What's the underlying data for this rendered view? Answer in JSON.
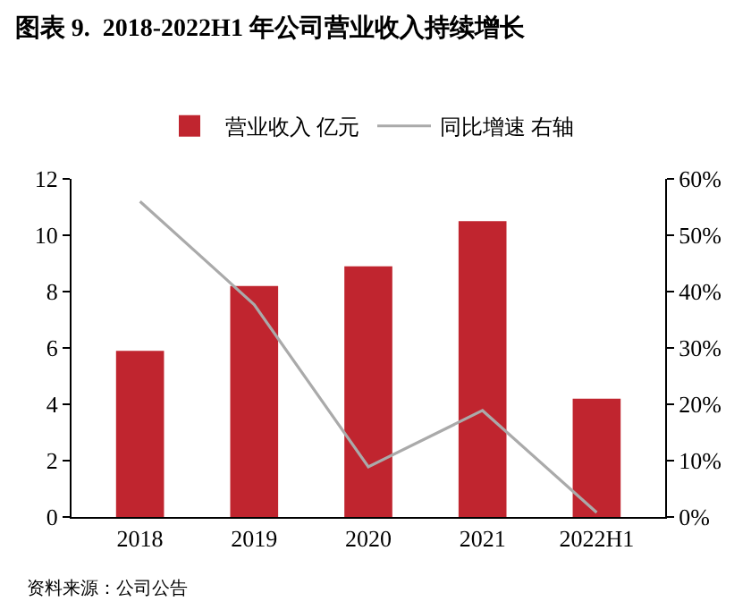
{
  "chart_data": {
    "type": "bar",
    "title": "图表 9.  2018-2022H1 年公司营业收入持续增长",
    "categories": [
      "2018",
      "2019",
      "2020",
      "2021",
      "2022H1"
    ],
    "series": [
      {
        "name": "营业收入 亿元",
        "color": "#c0252f",
        "values": [
          5.9,
          8.2,
          8.9,
          10.5,
          4.2
        ]
      },
      {
        "name": "同比增速 右轴",
        "type": "line",
        "axis": "y2",
        "color": "#aaaaaa",
        "marker": "none",
        "values": [
          56,
          37.7,
          8.9,
          18.9,
          0.8
        ]
      }
    ],
    "ylim": [
      0,
      12
    ],
    "yticks": [
      0,
      2,
      4,
      6,
      8,
      10,
      12
    ],
    "y2lim": [
      0,
      60
    ],
    "y2ticks": [
      {
        "value": 0,
        "label": "0%"
      },
      {
        "value": 10,
        "label": "10%"
      },
      {
        "value": 20,
        "label": "20%"
      },
      {
        "value": 30,
        "label": "30%"
      },
      {
        "value": 40,
        "label": "40%"
      },
      {
        "value": 50,
        "label": "50%"
      },
      {
        "value": 60,
        "label": "60%"
      }
    ],
    "grid": false,
    "legend": "top",
    "annotations": [
      "资料来源：公司公告"
    ]
  }
}
